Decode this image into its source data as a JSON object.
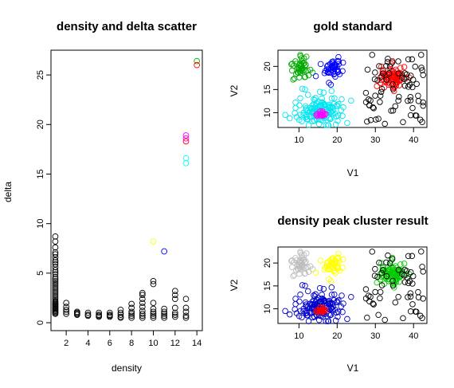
{
  "chart_data": [
    {
      "type": "scatter",
      "title": "density and delta scatter",
      "xlabel": "density",
      "ylabel": "delta",
      "xlim": [
        0.6,
        14.5
      ],
      "ylim": [
        -0.8,
        27.5
      ],
      "xticks": [
        2,
        4,
        6,
        8,
        10,
        12,
        14
      ],
      "yticks": [
        0,
        5,
        10,
        15,
        20,
        25
      ],
      "series": [
        {
          "color": "#000000",
          "x": [
            1,
            1,
            1,
            1,
            1,
            1,
            1,
            1,
            1,
            1,
            1,
            1,
            1,
            1,
            1,
            1,
            1,
            1,
            1,
            1,
            1,
            1,
            1,
            1,
            1,
            1,
            1,
            1,
            1,
            1,
            1,
            1,
            1,
            1,
            1,
            1,
            1,
            1,
            1,
            2,
            2,
            2,
            2,
            2,
            3,
            3,
            3,
            3,
            4,
            4,
            4,
            5,
            5,
            5,
            5,
            6,
            6,
            6,
            6,
            7,
            7,
            7,
            7,
            7,
            8,
            8,
            8,
            8,
            8,
            8,
            9,
            9,
            9,
            9,
            9,
            9,
            9,
            9,
            9,
            10,
            10,
            10,
            10,
            10,
            10,
            10,
            10,
            11,
            11,
            11,
            11,
            11,
            12,
            12,
            12,
            12,
            12,
            12,
            12,
            13,
            13,
            13,
            13,
            13
          ],
          "y": [
            8.7,
            8.2,
            7.6,
            7.1,
            6.9,
            6.6,
            6.3,
            6.1,
            5.9,
            5.6,
            5.3,
            5.1,
            4.9,
            4.6,
            4.4,
            4.2,
            4.0,
            3.8,
            3.6,
            3.4,
            3.2,
            3.0,
            2.8,
            2.6,
            2.4,
            2.2,
            2.1,
            2.0,
            1.9,
            1.8,
            1.7,
            1.6,
            1.5,
            1.4,
            1.3,
            1.2,
            1.1,
            1.0,
            0.9,
            2.0,
            1.6,
            1.3,
            1.1,
            0.9,
            1.1,
            1.0,
            0.9,
            0.8,
            1.0,
            0.8,
            0.7,
            1.0,
            0.8,
            0.7,
            0.6,
            1.0,
            0.8,
            0.7,
            0.6,
            1.3,
            1.0,
            0.8,
            0.6,
            0.5,
            1.9,
            1.5,
            1.1,
            0.9,
            0.7,
            0.5,
            3.0,
            2.8,
            2.4,
            2.0,
            1.6,
            1.2,
            0.9,
            0.7,
            0.5,
            4.2,
            3.9,
            2.0,
            1.4,
            1.1,
            0.9,
            0.7,
            0.5,
            1.4,
            1.1,
            0.9,
            0.7,
            0.5,
            3.2,
            2.8,
            2.4,
            1.5,
            1.0,
            0.8,
            0.6,
            2.4,
            1.5,
            1.1,
            0.7,
            0.5
          ]
        },
        {
          "color": "#ffff00",
          "x": [
            10
          ],
          "y": [
            8.2
          ]
        },
        {
          "color": "#0000ff",
          "x": [
            11
          ],
          "y": [
            7.2
          ]
        },
        {
          "color": "#00ffff",
          "x": [
            13,
            13
          ],
          "y": [
            16.6,
            16.1
          ]
        },
        {
          "color": "#ff00ff",
          "x": [
            13,
            13
          ],
          "y": [
            18.9,
            18.6
          ]
        },
        {
          "color": "#ff0000",
          "x": [
            13
          ],
          "y": [
            18.3
          ]
        },
        {
          "color": "#00aa00",
          "x": [
            14
          ],
          "y": [
            26.4
          ]
        },
        {
          "color": "#ff0000",
          "x": [
            14
          ],
          "y": [
            26.0
          ]
        }
      ]
    },
    {
      "type": "scatter",
      "title": "gold standard",
      "xlabel": "V1",
      "ylabel": "V2",
      "xlim": [
        4.5,
        43.5
      ],
      "ylim": [
        6.8,
        23.5
      ],
      "xticks": [
        10,
        20,
        30,
        40
      ],
      "yticks": [
        10,
        15,
        20
      ],
      "clusters": [
        {
          "color": "#00aa00",
          "center": [
            10.5,
            19.5
          ],
          "spread": [
            3.0,
            3.0
          ],
          "count": 45
        },
        {
          "color": "#0000ff",
          "center": [
            18.5,
            19.3
          ],
          "spread": [
            3.0,
            3.0
          ],
          "count": 45
        },
        {
          "color": "#00e5ee",
          "center": [
            15.5,
            10.5
          ],
          "spread": [
            7.0,
            3.8
          ],
          "count": 130
        },
        {
          "color": "#ff00ff",
          "center": [
            16.0,
            9.7
          ],
          "spread": [
            1.6,
            1.0
          ],
          "count": 18
        },
        {
          "color": "#ff0000",
          "center": [
            34.5,
            17.5
          ],
          "spread": [
            4.0,
            2.8
          ],
          "count": 80
        },
        {
          "color": "#000000",
          "center": [
            35.0,
            15.0
          ],
          "spread": [
            8.0,
            7.5
          ],
          "count": 75,
          "uniform": true
        }
      ]
    },
    {
      "type": "scatter",
      "title": "density peak cluster result",
      "xlabel": "V1",
      "ylabel": "V2",
      "xlim": [
        4.5,
        43.5
      ],
      "ylim": [
        6.8,
        23.5
      ],
      "xticks": [
        10,
        20,
        30,
        40
      ],
      "yticks": [
        10,
        15,
        20
      ],
      "clusters": [
        {
          "color": "#bebebe",
          "center": [
            10.5,
            19.5
          ],
          "spread": [
            3.0,
            3.0
          ],
          "count": 45
        },
        {
          "color": "#ffff00",
          "center": [
            18.5,
            19.3
          ],
          "spread": [
            3.0,
            3.0
          ],
          "count": 45
        },
        {
          "color": "#0000cd",
          "center": [
            15.5,
            10.5
          ],
          "spread": [
            7.0,
            3.8
          ],
          "count": 130
        },
        {
          "color": "#ff0000",
          "center": [
            16.0,
            9.7
          ],
          "spread": [
            1.6,
            1.0
          ],
          "count": 18
        },
        {
          "color": "#00cc00",
          "center": [
            34.5,
            17.5
          ],
          "spread": [
            4.0,
            2.8
          ],
          "count": 80
        },
        {
          "color": "#000000",
          "center": [
            35.0,
            15.0
          ],
          "spread": [
            8.0,
            7.5
          ],
          "count": 60,
          "uniform": true
        }
      ]
    }
  ]
}
